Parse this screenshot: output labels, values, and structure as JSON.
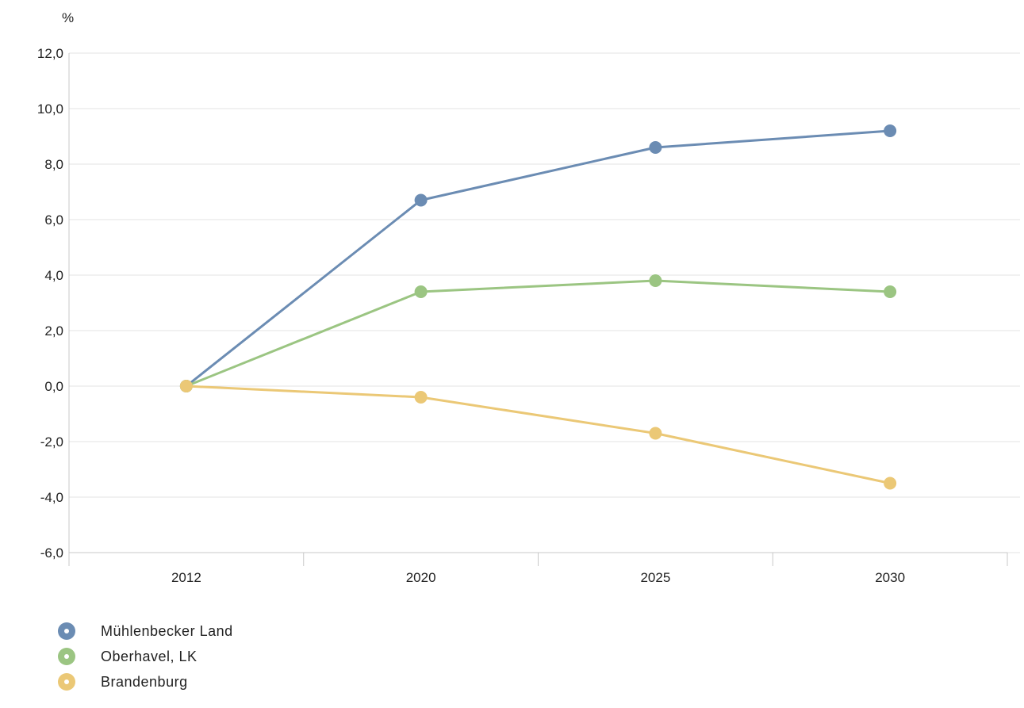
{
  "chart_data": {
    "type": "line",
    "ylabel": "%",
    "categories": [
      "2012",
      "2020",
      "2025",
      "2030"
    ],
    "ylim": [
      -6,
      12
    ],
    "yticks": [
      "12,0",
      "10,0",
      "8,0",
      "6,0",
      "4,0",
      "2,0",
      "0,0",
      "-2,0",
      "-4,0",
      "-6,0"
    ],
    "ytick_values": [
      12,
      10,
      8,
      6,
      4,
      2,
      0,
      -2,
      -4,
      -6
    ],
    "grid": true,
    "legend_position": "bottom-left",
    "series": [
      {
        "name": "Mühlenbecker Land",
        "color": "#6b8cb3",
        "values": [
          0.0,
          6.7,
          8.6,
          9.2
        ]
      },
      {
        "name": "Oberhavel, LK",
        "color": "#9bc582",
        "values": [
          0.0,
          3.4,
          3.8,
          3.4
        ]
      },
      {
        "name": "Brandenburg",
        "color": "#ebc876",
        "values": [
          0.0,
          -0.4,
          -1.7,
          -3.5
        ]
      }
    ]
  }
}
